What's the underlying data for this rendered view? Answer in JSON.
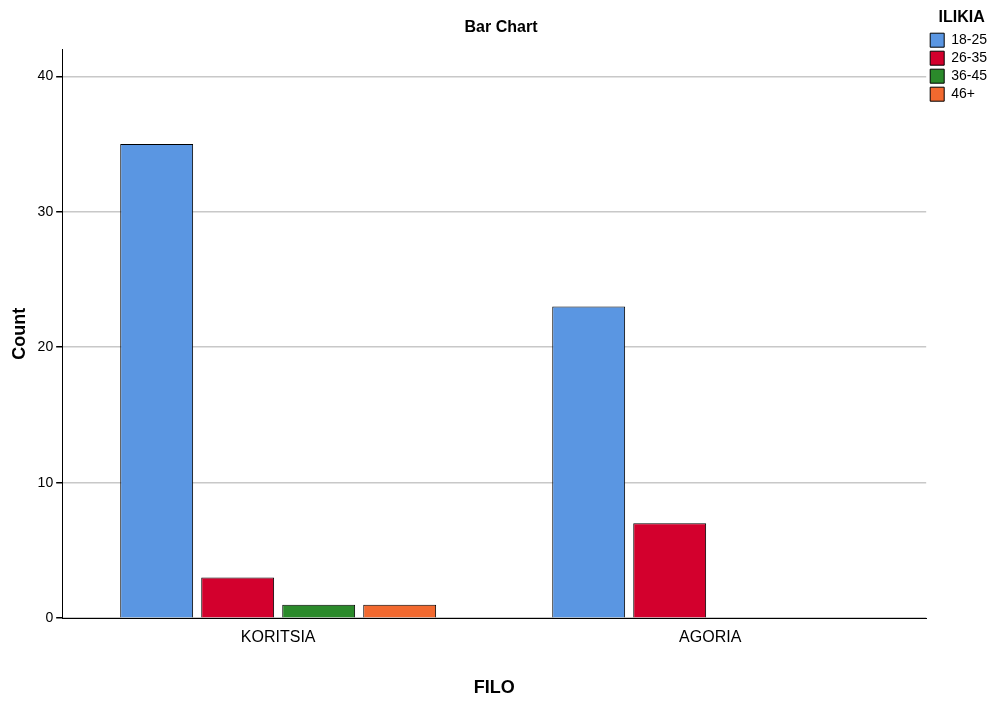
{
  "chart_data": {
    "type": "bar",
    "title": "Bar Chart",
    "xlabel": "FILO",
    "ylabel": "Count",
    "legend_title": "ILIKIA",
    "categories": [
      "KORITSIA",
      "AGORIA"
    ],
    "series": [
      {
        "name": "18-25",
        "color": "#5a96e2",
        "values": [
          35,
          23
        ]
      },
      {
        "name": "26-35",
        "color": "#d3002d",
        "values": [
          3,
          7
        ]
      },
      {
        "name": "36-45",
        "color": "#2b8a2b",
        "values": [
          1,
          null
        ]
      },
      {
        "name": "46+",
        "color": "#f2692f",
        "values": [
          1,
          null
        ]
      }
    ],
    "ylim": [
      0,
      42
    ],
    "yticks": [
      0,
      10,
      20,
      30,
      40
    ],
    "grid": "y",
    "legend": "top right"
  }
}
